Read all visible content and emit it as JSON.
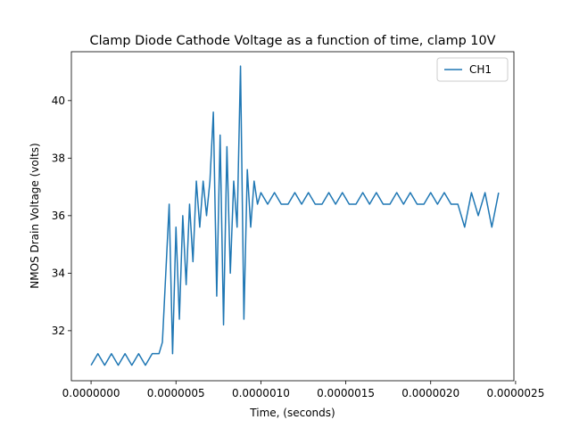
{
  "chart_data": {
    "type": "line",
    "title": "Clamp Diode Cathode Voltage as a function of time, clamp 10V",
    "x_label": "Time, (seconds)",
    "y_label": "NMOS Drain Voltage (volts)",
    "x": [
      0,
      4e-08,
      8e-08,
      1.2e-07,
      1.6e-07,
      2e-07,
      2.4e-07,
      2.8e-07,
      3.2e-07,
      3.6e-07,
      4e-07,
      4.2e-07,
      4.4e-07,
      4.6e-07,
      4.8e-07,
      5e-07,
      5.2e-07,
      5.4e-07,
      5.6e-07,
      5.8e-07,
      6e-07,
      6.2e-07,
      6.4e-07,
      6.6e-07,
      6.8e-07,
      7e-07,
      7.2e-07,
      7.4e-07,
      7.6e-07,
      7.8e-07,
      8e-07,
      8.2e-07,
      8.4e-07,
      8.6e-07,
      8.8e-07,
      9e-07,
      9.2e-07,
      9.4e-07,
      9.6e-07,
      9.8e-07,
      1e-06,
      1.04e-06,
      1.08e-06,
      1.12e-06,
      1.16e-06,
      1.2e-06,
      1.24e-06,
      1.28e-06,
      1.32e-06,
      1.36e-06,
      1.4e-06,
      1.44e-06,
      1.48e-06,
      1.52e-06,
      1.56e-06,
      1.6e-06,
      1.64e-06,
      1.68e-06,
      1.72e-06,
      1.76e-06,
      1.8e-06,
      1.84e-06,
      1.88e-06,
      1.92e-06,
      1.96e-06,
      2e-06,
      2.04e-06,
      2.08e-06,
      2.12e-06,
      2.16e-06,
      2.2e-06,
      2.24e-06,
      2.28e-06,
      2.32e-06,
      2.36e-06,
      2.4e-06
    ],
    "series": [
      {
        "name": "CH1",
        "color": "#1f77b4",
        "values": [
          30.8,
          31.2,
          30.8,
          31.2,
          30.8,
          31.2,
          30.8,
          31.2,
          30.8,
          31.2,
          31.2,
          31.6,
          34.0,
          36.4,
          31.2,
          35.6,
          32.4,
          36.0,
          33.6,
          36.4,
          34.4,
          37.2,
          35.6,
          37.2,
          36.0,
          37.2,
          39.6,
          33.2,
          38.8,
          32.2,
          38.4,
          34.0,
          37.2,
          35.6,
          41.2,
          32.4,
          37.6,
          35.6,
          37.2,
          36.4,
          36.8,
          36.4,
          36.8,
          36.4,
          36.4,
          36.8,
          36.4,
          36.8,
          36.4,
          36.4,
          36.8,
          36.4,
          36.8,
          36.4,
          36.4,
          36.8,
          36.4,
          36.8,
          36.4,
          36.4,
          36.8,
          36.4,
          36.8,
          36.4,
          36.4,
          36.8,
          36.4,
          36.8,
          36.4,
          36.4,
          35.6,
          36.8,
          36.0,
          36.8,
          35.6,
          36.8
        ]
      }
    ],
    "xlim": [
      -1.16e-07,
      2.49e-06
    ],
    "ylim": [
      30.26,
      41.7
    ],
    "xticks": [
      {
        "value": 0,
        "label": "0.0000000"
      },
      {
        "value": 5e-07,
        "label": "0.0000005"
      },
      {
        "value": 1e-06,
        "label": "0.0000010"
      },
      {
        "value": 1.5e-06,
        "label": "0.0000015"
      },
      {
        "value": 2e-06,
        "label": "0.0000020"
      },
      {
        "value": 2.5e-06,
        "label": "0.0000025"
      }
    ],
    "yticks": [
      32,
      34,
      36,
      38,
      40
    ],
    "legend": "upper right"
  }
}
